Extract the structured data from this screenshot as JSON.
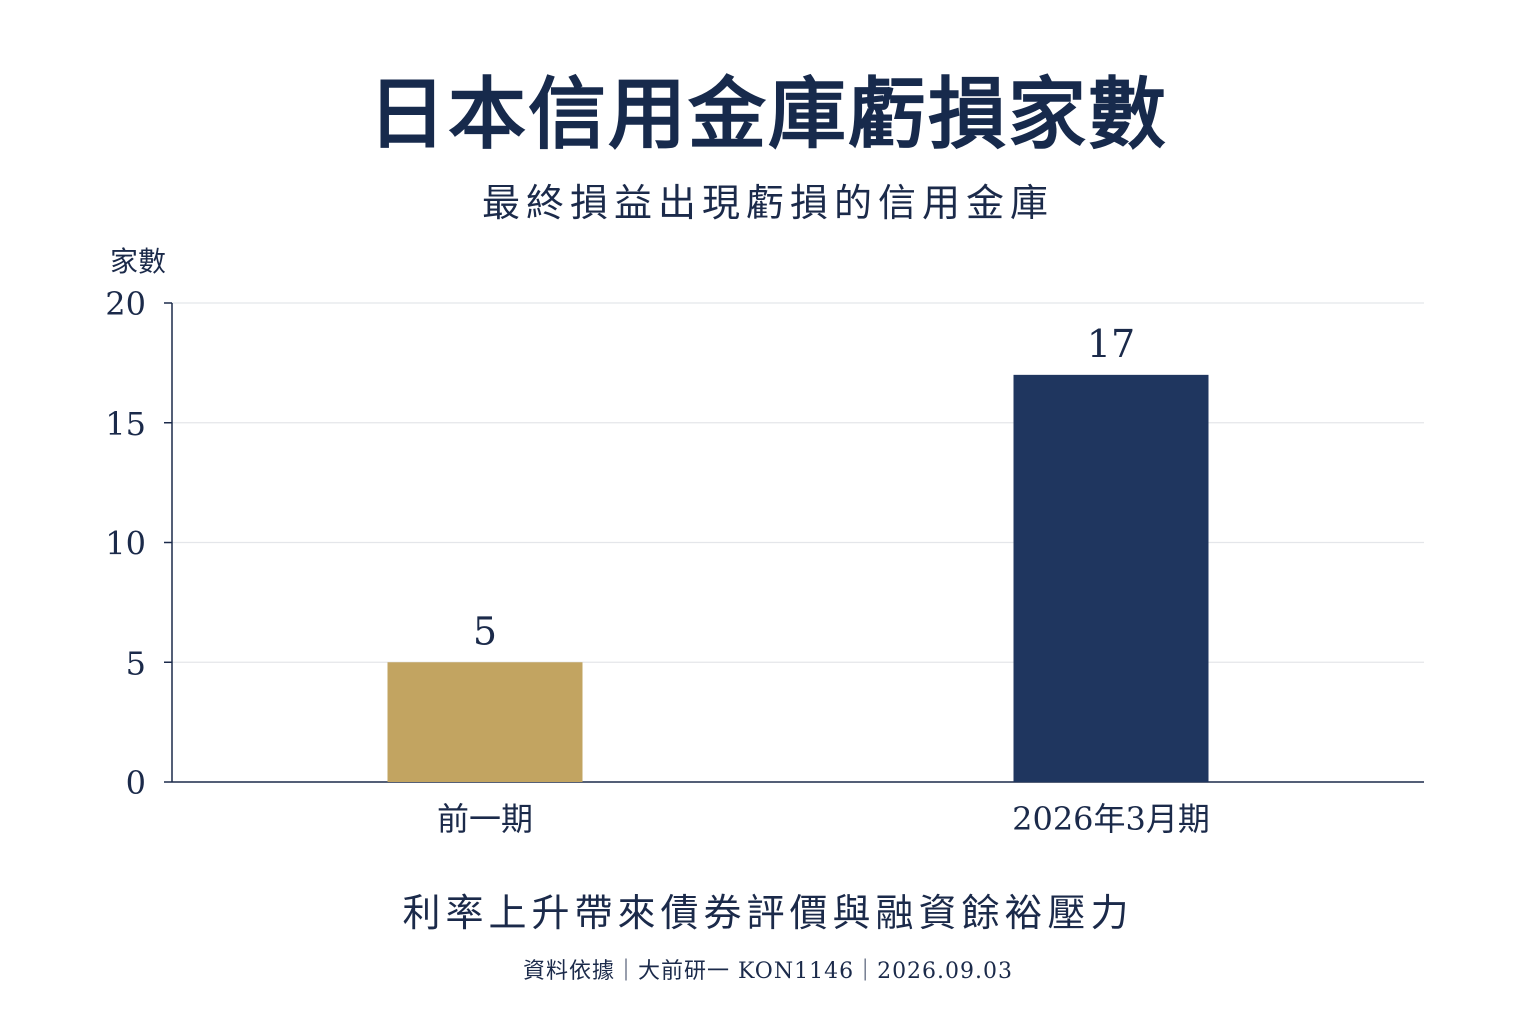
{
  "title": "日本信用金庫虧損家數",
  "subtitle": "最終損益出現虧損的信用金庫",
  "footer_note": "利率上升帶來債券評價與融資餘裕壓力",
  "source": "資料依據｜大前研一 KON1146｜2026.09.03",
  "colors": {
    "title": "#172a4c",
    "gold_bar": "#c2a461",
    "navy_bar": "#1f365f",
    "axis": "#1b2a4a",
    "grid": "#e4e6ea"
  },
  "chart_data": {
    "type": "bar",
    "ylabel": "家數",
    "xlabel": "",
    "ylim": [
      0,
      20
    ],
    "yticks": [
      0,
      5,
      10,
      15,
      20
    ],
    "grid": true,
    "categories": [
      "前一期",
      "2026年3月期"
    ],
    "values": [
      5,
      17
    ],
    "data_labels": [
      "5",
      "17"
    ],
    "bar_colors": [
      "#c2a461",
      "#1f365f"
    ]
  }
}
